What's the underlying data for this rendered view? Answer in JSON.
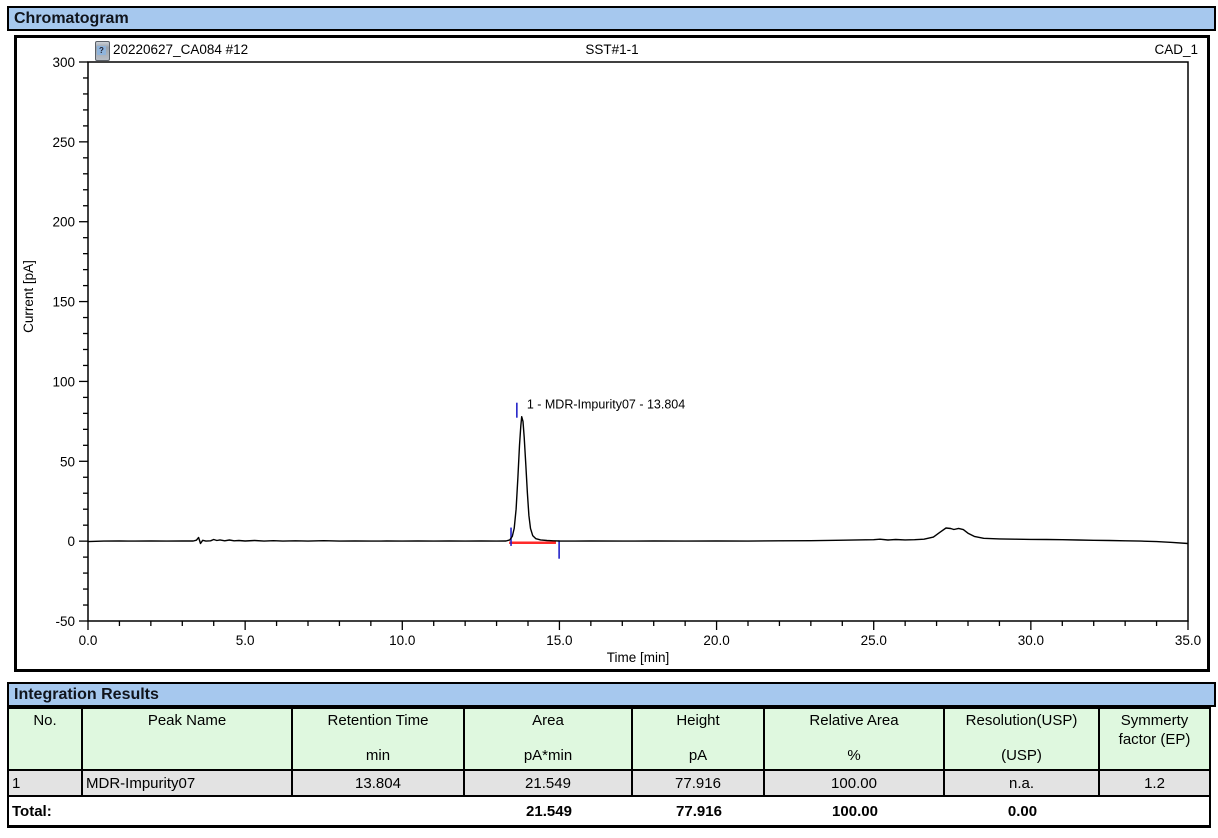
{
  "title_bar": {
    "label": "Chromatogram"
  },
  "chart_header": {
    "icon": "vial-question-icon",
    "icon_glyph": "?",
    "left": "20220627_CA084 #12",
    "center": "SST#1-1",
    "right": "CAD_1"
  },
  "chart_data": {
    "type": "line",
    "title": "",
    "xlabel": "Time [min]",
    "ylabel": "Current [pA]",
    "xlim": [
      0,
      35
    ],
    "ylim": [
      -50,
      300
    ],
    "x_major_ticks": [
      0,
      5,
      10,
      15,
      20,
      25,
      30,
      35
    ],
    "x_tick_labels": [
      "0.0",
      "5.0",
      "10.0",
      "15.0",
      "20.0",
      "25.0",
      "30.0",
      "35.0"
    ],
    "x_minor_step": 1,
    "y_major_ticks": [
      -50,
      0,
      50,
      100,
      150,
      200,
      250,
      300
    ],
    "y_minor_step": 10,
    "grid": false,
    "legend": "none",
    "line_color": "#000000",
    "trace": [
      [
        0,
        -0.3
      ],
      [
        0.5,
        0
      ],
      [
        1,
        0.1
      ],
      [
        1.5,
        0
      ],
      [
        2,
        0.1
      ],
      [
        2.5,
        0
      ],
      [
        3,
        0.1
      ],
      [
        3.35,
        0.1
      ],
      [
        3.45,
        0.6
      ],
      [
        3.52,
        2.3
      ],
      [
        3.58,
        -1.5
      ],
      [
        3.65,
        0.5
      ],
      [
        3.75,
        0
      ],
      [
        3.9,
        0.2
      ],
      [
        4.0,
        1.0
      ],
      [
        4.1,
        0.4
      ],
      [
        4.2,
        0.8
      ],
      [
        4.35,
        0.2
      ],
      [
        4.5,
        0.7
      ],
      [
        4.65,
        0.2
      ],
      [
        4.8,
        0.4
      ],
      [
        5.0,
        0.1
      ],
      [
        5.3,
        0.4
      ],
      [
        5.6,
        0
      ],
      [
        5.9,
        0.3
      ],
      [
        6.2,
        0
      ],
      [
        6.6,
        0.2
      ],
      [
        7.0,
        0
      ],
      [
        7.5,
        0.3
      ],
      [
        8.0,
        0
      ],
      [
        8.5,
        0.1
      ],
      [
        9,
        0
      ],
      [
        9.5,
        0.1
      ],
      [
        10,
        0
      ],
      [
        10.5,
        0.1
      ],
      [
        11,
        0
      ],
      [
        11.5,
        0.1
      ],
      [
        12,
        0
      ],
      [
        12.5,
        0.1
      ],
      [
        13.0,
        0
      ],
      [
        13.3,
        0.1
      ],
      [
        13.42,
        0.8
      ],
      [
        13.5,
        3
      ],
      [
        13.56,
        8
      ],
      [
        13.62,
        20
      ],
      [
        13.68,
        40
      ],
      [
        13.73,
        60
      ],
      [
        13.77,
        72
      ],
      [
        13.8,
        77.9
      ],
      [
        13.84,
        75
      ],
      [
        13.88,
        65
      ],
      [
        13.93,
        48
      ],
      [
        13.98,
        30
      ],
      [
        14.03,
        16
      ],
      [
        14.08,
        8
      ],
      [
        14.15,
        3.5
      ],
      [
        14.25,
        1.5
      ],
      [
        14.4,
        0.8
      ],
      [
        14.6,
        0.4
      ],
      [
        14.8,
        0.2
      ],
      [
        15.0,
        0.1
      ],
      [
        15.5,
        0
      ],
      [
        16,
        0.1
      ],
      [
        17,
        0
      ],
      [
        18,
        0.1
      ],
      [
        19,
        0
      ],
      [
        20,
        0.1
      ],
      [
        21,
        0
      ],
      [
        22,
        0.2
      ],
      [
        23,
        0.3
      ],
      [
        23.8,
        0.5
      ],
      [
        24.5,
        0.8
      ],
      [
        25.0,
        0.9
      ],
      [
        25.2,
        1.2
      ],
      [
        25.45,
        0.7
      ],
      [
        25.7,
        1.0
      ],
      [
        26.0,
        0.8
      ],
      [
        26.3,
        0.9
      ],
      [
        26.6,
        1.2
      ],
      [
        26.9,
        2.5
      ],
      [
        27.1,
        5.5
      ],
      [
        27.3,
        8.2
      ],
      [
        27.45,
        7.9
      ],
      [
        27.55,
        7.3
      ],
      [
        27.7,
        8.0
      ],
      [
        27.85,
        7.2
      ],
      [
        28.0,
        5.0
      ],
      [
        28.2,
        3.0
      ],
      [
        28.5,
        1.8
      ],
      [
        29.0,
        1.4
      ],
      [
        29.5,
        1.2
      ],
      [
        30,
        1.1
      ],
      [
        30.5,
        1.0
      ],
      [
        31,
        0.9
      ],
      [
        31.5,
        0.7
      ],
      [
        32,
        0.5
      ],
      [
        32.5,
        0.4
      ],
      [
        33,
        0.2
      ],
      [
        33.5,
        0
      ],
      [
        34,
        -0.3
      ],
      [
        34.5,
        -0.8
      ],
      [
        35,
        -1.5
      ]
    ],
    "peaks": [
      {
        "number": 1,
        "name": "MDR-Impurity07",
        "retention_time": 13.804,
        "height_pA": 77.916,
        "label": "1 - MDR-Impurity07 - 13.804",
        "marker_color": "#2323c8",
        "baseline_color": "#ff2a2a",
        "baseline": {
          "t0": 13.4,
          "t1": 14.89,
          "v": -1
        },
        "start_marker": {
          "t": 13.46,
          "v1": 8.5,
          "v2": -3
        },
        "end_marker": {
          "t": 14.99,
          "v1": 0.5,
          "v2": -11
        }
      }
    ]
  },
  "integration": {
    "title": "Integration Results",
    "columns": [
      {
        "name": "No.",
        "unit": ""
      },
      {
        "name": "Peak Name",
        "unit": ""
      },
      {
        "name": "Retention Time",
        "unit": "min"
      },
      {
        "name": "Area",
        "unit": "pA*min"
      },
      {
        "name": "Height",
        "unit": "pA"
      },
      {
        "name": "Relative Area",
        "unit": "%"
      },
      {
        "name": "Resolution(USP)",
        "unit": "(USP)"
      },
      {
        "name": "Symmerty factor (EP)",
        "unit": ""
      }
    ],
    "rows": [
      [
        "1",
        "MDR-Impurity07",
        "13.804",
        "21.549",
        "77.916",
        "100.00",
        "n.a.",
        "1.2"
      ]
    ],
    "total": {
      "label": "Total:",
      "area": "21.549",
      "height": "77.916",
      "relative_area": "100.00",
      "resolution": "0.00"
    }
  },
  "colors": {
    "section_bar_bg": "#a6c8ee",
    "table_header_bg": "#dff8df",
    "table_row_bg": "#e3e3e3",
    "trace": "#000000",
    "peak_baseline": "#ff2a2a",
    "peak_marker": "#2323c8"
  }
}
